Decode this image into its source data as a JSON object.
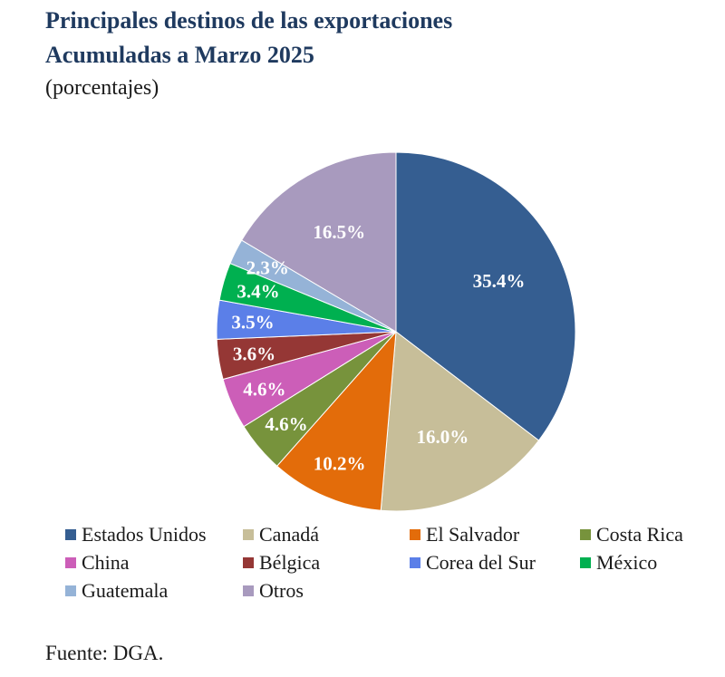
{
  "header": {
    "title_line1": "Principales destinos de las exportaciones",
    "title_line2": "Acumuladas a Marzo 2025",
    "subtitle": "(porcentajes)"
  },
  "source": "Fuente: DGA.",
  "chart_data": {
    "type": "pie",
    "title": "Principales destinos de las exportaciones Acumuladas a Marzo 2025",
    "subtitle": "(porcentajes)",
    "unit": "%",
    "legend_position": "bottom",
    "slices": [
      {
        "name": "Estados Unidos",
        "value": 35.4,
        "label": "35.4%",
        "color": "#355E91"
      },
      {
        "name": "Canadá",
        "value": 16.0,
        "label": "16.0%",
        "color": "#C7BE99"
      },
      {
        "name": "El Salvador",
        "value": 10.2,
        "label": "10.2%",
        "color": "#E36C0A"
      },
      {
        "name": "Costa Rica",
        "value": 4.6,
        "label": "4.6%",
        "color": "#77933C"
      },
      {
        "name": "China",
        "value": 4.6,
        "label": "4.6%",
        "color": "#CC5EB8"
      },
      {
        "name": "Bélgica",
        "value": 3.6,
        "label": "3.6%",
        "color": "#953735"
      },
      {
        "name": "Corea del Sur",
        "value": 3.5,
        "label": "3.5%",
        "color": "#5B7FE8"
      },
      {
        "name": "México",
        "value": 3.4,
        "label": "3.4%",
        "color": "#00B050"
      },
      {
        "name": "Guatemala",
        "value": 2.3,
        "label": "2.3%",
        "color": "#95B3D7"
      },
      {
        "name": "Otros",
        "value": 16.5,
        "label": "16.5%",
        "color": "#A89ABE"
      }
    ]
  }
}
